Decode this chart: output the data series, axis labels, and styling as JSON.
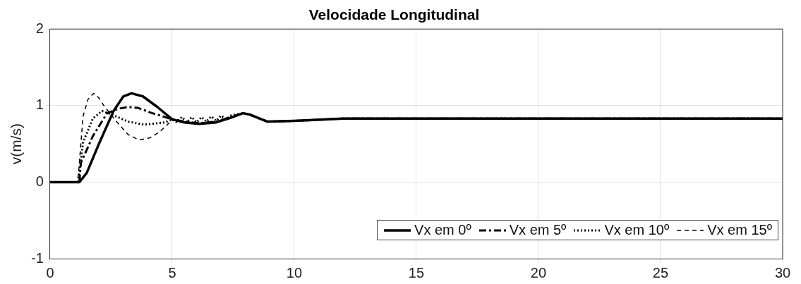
{
  "chart_data": {
    "type": "line",
    "title": "Velocidade Longitudinal",
    "ylabel": "v(m/s)",
    "xlim": [
      0,
      30
    ],
    "xticks": [
      0,
      5,
      10,
      15,
      20,
      25,
      30
    ],
    "ylim": [
      -1,
      2
    ],
    "yticks": [
      -1,
      0,
      1,
      2
    ],
    "grid": true,
    "legend": "bottom right",
    "marker": "none",
    "series": [
      {
        "name": "Vx em 0º",
        "color": "#000000",
        "line_style": "solid",
        "x": [
          0,
          1.2,
          1.5,
          2,
          2.6,
          3,
          3.33,
          3.8,
          4.4,
          5,
          5.5,
          6.1,
          6.8,
          7.4,
          7.9,
          8.2,
          8.9,
          10,
          12,
          15,
          20,
          25,
          30
        ],
        "values": [
          0,
          0,
          0.12,
          0.5,
          0.93,
          1.12,
          1.16,
          1.12,
          0.98,
          0.82,
          0.78,
          0.76,
          0.78,
          0.84,
          0.9,
          0.88,
          0.79,
          0.8,
          0.83,
          0.83,
          0.83,
          0.83,
          0.83
        ]
      },
      {
        "name": "Vx em 5º",
        "color": "#000000",
        "line_style": "dashdot",
        "x": [
          0,
          1.2,
          1.26,
          1.75,
          2.33,
          2.8,
          3.2,
          3.6,
          4.1,
          4.9,
          5.5,
          6.1,
          6.8,
          7.4,
          7.9,
          8.2,
          8.9,
          10,
          12,
          15,
          20,
          25,
          30
        ],
        "values": [
          0,
          0,
          0.25,
          0.6,
          0.9,
          0.96,
          0.98,
          0.97,
          0.91,
          0.83,
          0.79,
          0.77,
          0.79,
          0.85,
          0.9,
          0.88,
          0.79,
          0.8,
          0.83,
          0.83,
          0.83,
          0.83,
          0.83
        ]
      },
      {
        "name": "Vx em 10º",
        "color": "#000000",
        "line_style": "dotted",
        "x": [
          0,
          1.15,
          1.35,
          1.75,
          2.13,
          2.7,
          3.2,
          3.85,
          4.7,
          5,
          5.2,
          5.4,
          5.6,
          5.8,
          6,
          6.2,
          6.4,
          6.6,
          6.8,
          7,
          7.2,
          7.4,
          7.9,
          8.2,
          8.9,
          10,
          12,
          15,
          20,
          25,
          30
        ],
        "values": [
          0,
          0,
          0.52,
          0.83,
          0.93,
          0.86,
          0.79,
          0.75,
          0.78,
          0.82,
          0.78,
          0.85,
          0.78,
          0.85,
          0.78,
          0.85,
          0.79,
          0.86,
          0.8,
          0.87,
          0.82,
          0.87,
          0.9,
          0.88,
          0.79,
          0.8,
          0.83,
          0.83,
          0.83,
          0.83,
          0.83
        ]
      },
      {
        "name": "Vx em 15º",
        "color": "#000000",
        "line_style": "dashed",
        "x": [
          0,
          1.12,
          1.18,
          1.35,
          1.55,
          1.78,
          2,
          2.2,
          2.7,
          3.2,
          3.65,
          4.1,
          4.5,
          5,
          5.5,
          6.1,
          6.8,
          7.4,
          7.9,
          8.2,
          8.9,
          10,
          12,
          15,
          20,
          25,
          30
        ],
        "values": [
          0,
          0,
          0.18,
          0.86,
          1.08,
          1.16,
          1.1,
          1.0,
          0.8,
          0.62,
          0.55,
          0.58,
          0.66,
          0.81,
          0.79,
          0.77,
          0.79,
          0.85,
          0.9,
          0.88,
          0.79,
          0.8,
          0.83,
          0.83,
          0.83,
          0.83,
          0.83
        ]
      }
    ]
  }
}
